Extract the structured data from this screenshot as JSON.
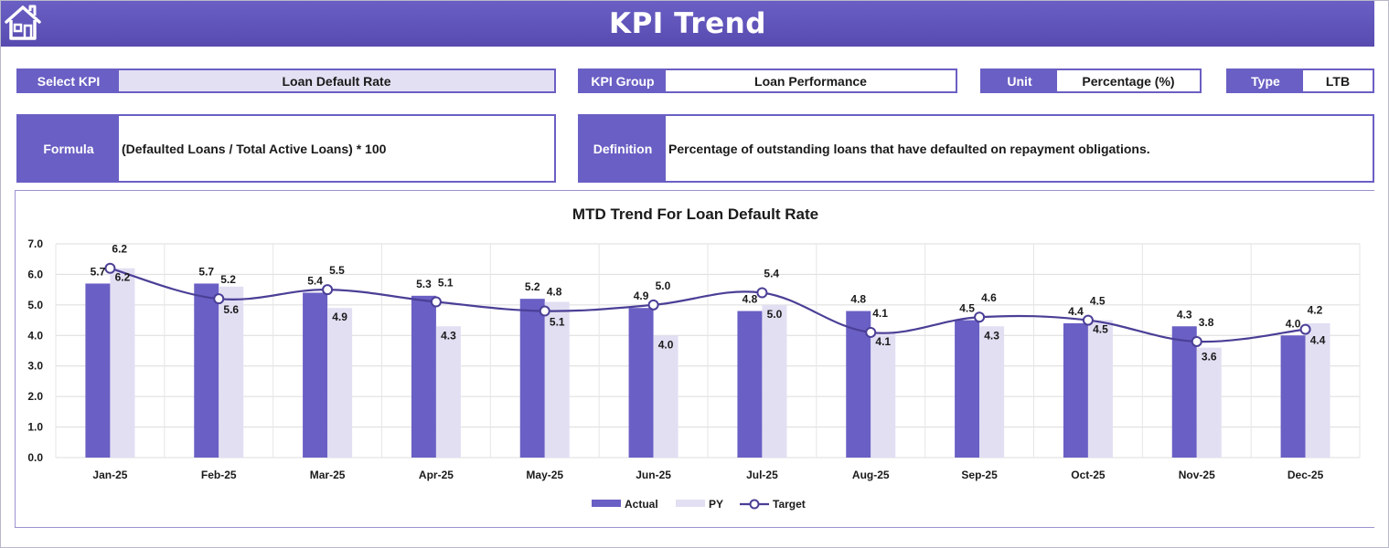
{
  "header": {
    "title": "KPI Trend",
    "home_icon": "home-icon"
  },
  "fields": {
    "select_kpi": {
      "label": "Select KPI",
      "value": "Loan Default Rate"
    },
    "kpi_group": {
      "label": "KPI Group",
      "value": "Loan Performance"
    },
    "unit": {
      "label": "Unit",
      "value": "Percentage (%)"
    },
    "type": {
      "label": "Type",
      "value": "LTB"
    },
    "formula": {
      "label": "Formula",
      "value": "(Defaulted Loans / Total Active Loans) * 100"
    },
    "definition": {
      "label": "Definition",
      "value": "Percentage of outstanding loans that have defaulted on repayment obligations."
    }
  },
  "colors": {
    "accent": "#6a5fc4",
    "actual": "#6a5fc4",
    "py": "#e2dff3",
    "target": "#4a3f96",
    "tint": "#e4e0f4"
  },
  "chart_data": {
    "type": "bar",
    "title": "MTD Trend For Loan Default Rate",
    "categories": [
      "Jan-25",
      "Feb-25",
      "Mar-25",
      "Apr-25",
      "May-25",
      "Jun-25",
      "Jul-25",
      "Aug-25",
      "Sep-25",
      "Oct-25",
      "Nov-25",
      "Dec-25"
    ],
    "series": [
      {
        "name": "Actual",
        "kind": "bar",
        "values": [
          5.7,
          5.7,
          5.4,
          5.3,
          5.2,
          4.9,
          4.8,
          4.8,
          4.5,
          4.4,
          4.3,
          4.0
        ]
      },
      {
        "name": "PY",
        "kind": "bar",
        "values": [
          6.2,
          5.6,
          4.9,
          4.3,
          5.1,
          4.0,
          5.0,
          4.1,
          4.3,
          4.5,
          3.6,
          4.4
        ]
      },
      {
        "name": "Target",
        "kind": "line",
        "values": [
          6.2,
          5.2,
          5.5,
          5.1,
          4.8,
          5.0,
          5.4,
          4.1,
          4.6,
          4.5,
          3.8,
          4.2
        ]
      }
    ],
    "ylim": [
      0,
      7
    ],
    "yticks": [
      "0.0",
      "1.0",
      "2.0",
      "3.0",
      "4.0",
      "5.0",
      "6.0",
      "7.0"
    ],
    "grid": true,
    "legend": "bottom",
    "xlabel": "",
    "ylabel": ""
  }
}
